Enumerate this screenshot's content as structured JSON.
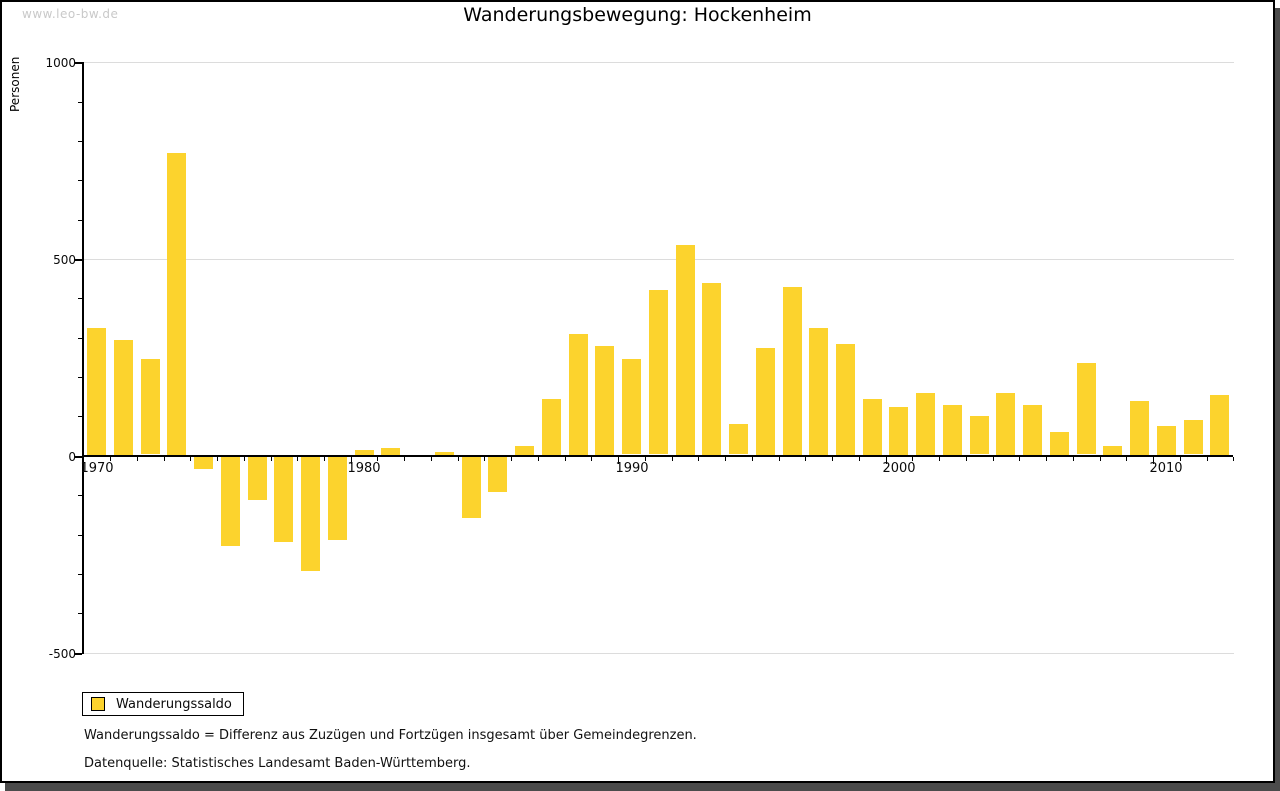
{
  "watermark": "www.leo-bw.de",
  "title": "Wanderungsbewegung: Hockenheim",
  "y_axis": {
    "label": "Personen",
    "major_ticks": [
      1000,
      500,
      0,
      -500
    ],
    "minor_step": 100,
    "min": -500,
    "max": 1000
  },
  "x_axis": {
    "decade_labels": [
      "1970",
      "1980",
      "1990",
      "2000",
      "2010"
    ],
    "first_year": 1970,
    "last_year": 2012
  },
  "legend": {
    "label": "Wanderungssaldo"
  },
  "notes": [
    "Wanderungssaldo = Differenz aus Zuzügen und Fortzügen insgesamt über Gemeindegrenzen.",
    "Datenquelle: Statistisches Landesamt Baden-Württemberg."
  ],
  "colors": {
    "bar": "#fcd32d",
    "grid": "#dcdcdc",
    "axis": "#000000",
    "watermark": "#c9c9c9",
    "shadow": "#4b4b4b"
  },
  "chart_data": {
    "type": "bar",
    "title": "Wanderungsbewegung: Hockenheim",
    "series_name": "Wanderungssaldo",
    "xlabel": "",
    "ylabel": "Personen",
    "ylim": [
      -500,
      1000
    ],
    "grid": "horizontal",
    "legend_position": "bottom-left",
    "x": [
      1970,
      1971,
      1972,
      1973,
      1974,
      1975,
      1976,
      1977,
      1978,
      1979,
      1980,
      1981,
      1982,
      1983,
      1984,
      1985,
      1986,
      1987,
      1988,
      1989,
      1990,
      1991,
      1992,
      1993,
      1994,
      1995,
      1996,
      1997,
      1998,
      1999,
      2000,
      2001,
      2002,
      2003,
      2004,
      2005,
      2006,
      2007,
      2008,
      2009,
      2010,
      2011,
      2012
    ],
    "values": [
      325,
      295,
      245,
      770,
      -30,
      -225,
      -110,
      -215,
      -290,
      -210,
      15,
      20,
      0,
      10,
      -155,
      -90,
      25,
      145,
      310,
      280,
      245,
      420,
      535,
      440,
      80,
      275,
      430,
      325,
      285,
      145,
      125,
      160,
      130,
      100,
      160,
      130,
      60,
      235,
      25,
      140,
      75,
      90,
      155
    ]
  }
}
